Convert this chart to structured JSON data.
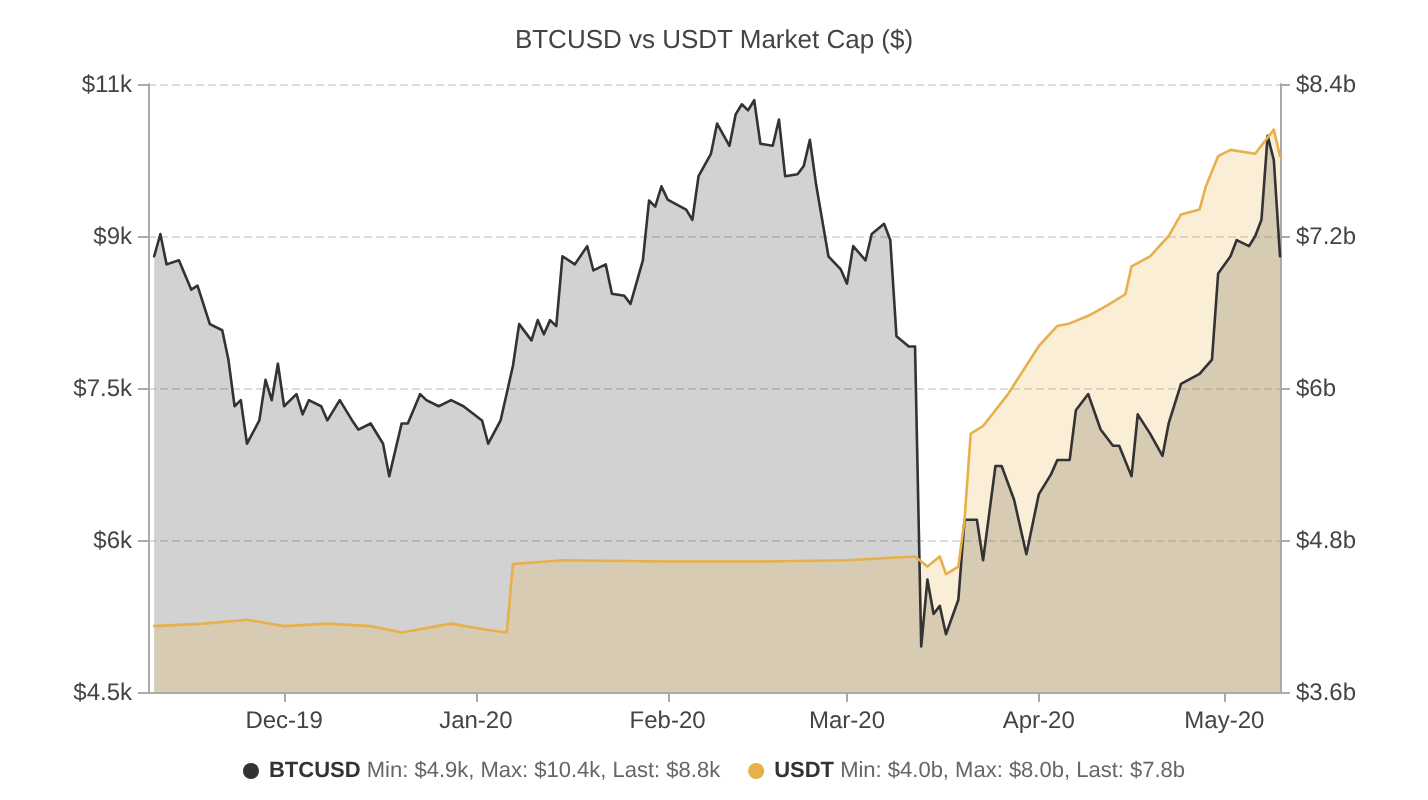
{
  "chart_data": {
    "type": "area",
    "title": "BTCUSD vs USDT Market Cap ($)",
    "annotations": [
      "Min: $4.9k, Max: $10.4k, Last: $8.8k",
      "Min: $4.0b, Max: $8.0b, Last: $7.8b"
    ],
    "xlim": [
      "2019-11-09",
      "2020-05-10"
    ],
    "xticks": [
      {
        "value": "2019-12-01",
        "label": "Dec-19"
      },
      {
        "value": "2020-01-01",
        "label": "Jan-20"
      },
      {
        "value": "2020-02-01",
        "label": "Feb-20"
      },
      {
        "value": "2020-03-01",
        "label": "Mar-20"
      },
      {
        "value": "2020-04-01",
        "label": "Apr-20"
      },
      {
        "value": "2020-05-01",
        "label": "May-20"
      }
    ],
    "ylim": [
      4.5,
      10.5
    ],
    "yticks": [
      {
        "value": 4.5,
        "label": "$4.5k"
      },
      {
        "value": 6,
        "label": "$6k"
      },
      {
        "value": 7.5,
        "label": "$7.5k"
      },
      {
        "value": 9,
        "label": "$9k"
      },
      {
        "value": 10.5,
        "label": "$11k"
      }
    ],
    "y2lim": [
      3.6,
      8.4
    ],
    "y2ticks": [
      {
        "value": 3.6,
        "label": "$3.6b"
      },
      {
        "value": 4.8,
        "label": "$4.8b"
      },
      {
        "value": 6,
        "label": "$6b"
      },
      {
        "value": 7.2,
        "label": "$7.2b"
      },
      {
        "value": 8.4,
        "label": "$8.4b"
      }
    ],
    "grid": "y",
    "legend": "bottom",
    "marker": "none",
    "line_style": "solid",
    "series": [
      {
        "name": "BTCUSD",
        "color": "#333333",
        "x": [
          "2019-11-10",
          "2019-11-11",
          "2019-11-12",
          "2019-11-14",
          "2019-11-16",
          "2019-11-17",
          "2019-11-19",
          "2019-11-21",
          "2019-11-22",
          "2019-11-23",
          "2019-11-24",
          "2019-11-25",
          "2019-11-27",
          "2019-11-28",
          "2019-11-29",
          "2019-11-30",
          "2019-12-01",
          "2019-12-03",
          "2019-12-04",
          "2019-12-05",
          "2019-12-07",
          "2019-12-08",
          "2019-12-10",
          "2019-12-12",
          "2019-12-13",
          "2019-12-15",
          "2019-12-17",
          "2019-12-18",
          "2019-12-20",
          "2019-12-21",
          "2019-12-23",
          "2019-12-24",
          "2019-12-26",
          "2019-12-28",
          "2019-12-30",
          "2020-01-02",
          "2020-01-03",
          "2020-01-05",
          "2020-01-07",
          "2020-01-08",
          "2020-01-10",
          "2020-01-11",
          "2020-01-12",
          "2020-01-13",
          "2020-01-14",
          "2020-01-15",
          "2020-01-17",
          "2020-01-19",
          "2020-01-20",
          "2020-01-22",
          "2020-01-23",
          "2020-01-25",
          "2020-01-26",
          "2020-01-28",
          "2020-01-29",
          "2020-01-30",
          "2020-01-31",
          "2020-02-01",
          "2020-02-04",
          "2020-02-05",
          "2020-02-06",
          "2020-02-08",
          "2020-02-09",
          "2020-02-11",
          "2020-02-12",
          "2020-02-13",
          "2020-02-14",
          "2020-02-15",
          "2020-02-16",
          "2020-02-18",
          "2020-02-19",
          "2020-02-20",
          "2020-02-22",
          "2020-02-23",
          "2020-02-24",
          "2020-02-25",
          "2020-02-27",
          "2020-02-29",
          "2020-03-01",
          "2020-03-02",
          "2020-03-04",
          "2020-03-05",
          "2020-03-07",
          "2020-03-08",
          "2020-03-09",
          "2020-03-11",
          "2020-03-12",
          "2020-03-13",
          "2020-03-14",
          "2020-03-15",
          "2020-03-16",
          "2020-03-17",
          "2020-03-19",
          "2020-03-20",
          "2020-03-22",
          "2020-03-23",
          "2020-03-25",
          "2020-03-26",
          "2020-03-28",
          "2020-03-30",
          "2020-04-01",
          "2020-04-03",
          "2020-04-04",
          "2020-04-06",
          "2020-04-07",
          "2020-04-09",
          "2020-04-11",
          "2020-04-13",
          "2020-04-14",
          "2020-04-16",
          "2020-04-17",
          "2020-04-19",
          "2020-04-21",
          "2020-04-22",
          "2020-04-24",
          "2020-04-27",
          "2020-04-29",
          "2020-04-30",
          "2020-05-02",
          "2020-05-03",
          "2020-05-05",
          "2020-05-06",
          "2020-05-07",
          "2020-05-08",
          "2020-05-09",
          "2020-05-10"
        ],
        "values": [
          8.8,
          9.02,
          8.72,
          8.76,
          8.47,
          8.51,
          8.13,
          8.07,
          7.78,
          7.32,
          7.38,
          6.95,
          7.18,
          7.58,
          7.38,
          7.74,
          7.32,
          7.44,
          7.24,
          7.38,
          7.32,
          7.18,
          7.38,
          7.18,
          7.09,
          7.15,
          6.95,
          6.63,
          7.15,
          7.15,
          7.44,
          7.38,
          7.32,
          7.38,
          7.32,
          7.18,
          6.95,
          7.18,
          7.72,
          8.13,
          7.97,
          8.17,
          8.03,
          8.17,
          8.11,
          8.8,
          8.72,
          8.9,
          8.66,
          8.72,
          8.43,
          8.41,
          8.33,
          8.76,
          9.35,
          9.29,
          9.49,
          9.36,
          9.26,
          9.16,
          9.59,
          9.81,
          10.11,
          9.89,
          10.2,
          10.3,
          10.24,
          10.34,
          9.91,
          9.89,
          10.15,
          9.59,
          9.61,
          9.69,
          9.95,
          9.51,
          8.8,
          8.67,
          8.53,
          8.9,
          8.76,
          9.02,
          9.12,
          8.96,
          8.01,
          7.91,
          7.91,
          4.95,
          5.61,
          5.27,
          5.35,
          5.07,
          5.41,
          6.2,
          6.2,
          5.8,
          6.73,
          6.73,
          6.4,
          5.86,
          6.45,
          6.65,
          6.79,
          6.79,
          7.28,
          7.44,
          7.09,
          6.93,
          6.93,
          6.63,
          7.24,
          7.05,
          6.83,
          7.15,
          7.54,
          7.64,
          7.78,
          8.63,
          8.8,
          8.96,
          8.9,
          9.0,
          9.16,
          9.99,
          9.75,
          8.8
        ]
      },
      {
        "name": "USDT",
        "color": "#e8b04a",
        "axis": "y2",
        "x": [
          "2019-11-10",
          "2019-11-18",
          "2019-11-25",
          "2019-12-01",
          "2019-12-08",
          "2019-12-15",
          "2019-12-20",
          "2019-12-28",
          "2020-01-03",
          "2020-01-06",
          "2020-01-07",
          "2020-01-15",
          "2020-02-01",
          "2020-02-15",
          "2020-03-01",
          "2020-03-12",
          "2020-03-14",
          "2020-03-16",
          "2020-03-17",
          "2020-03-19",
          "2020-03-20",
          "2020-03-21",
          "2020-03-23",
          "2020-03-27",
          "2020-04-01",
          "2020-04-04",
          "2020-04-06",
          "2020-04-09",
          "2020-04-12",
          "2020-04-15",
          "2020-04-16",
          "2020-04-19",
          "2020-04-22",
          "2020-04-24",
          "2020-04-27",
          "2020-04-28",
          "2020-04-30",
          "2020-05-02",
          "2020-05-06",
          "2020-05-09",
          "2020-05-10"
        ],
        "values": [
          4.12,
          4.14,
          4.17,
          4.12,
          4.14,
          4.12,
          4.07,
          4.14,
          4.09,
          4.07,
          4.61,
          4.64,
          4.63,
          4.63,
          4.64,
          4.67,
          4.59,
          4.67,
          4.53,
          4.59,
          4.96,
          5.64,
          5.7,
          5.95,
          6.33,
          6.49,
          6.51,
          6.57,
          6.65,
          6.74,
          6.96,
          7.04,
          7.2,
          7.37,
          7.41,
          7.59,
          7.83,
          7.88,
          7.85,
          8.04,
          7.83
        ]
      }
    ]
  }
}
